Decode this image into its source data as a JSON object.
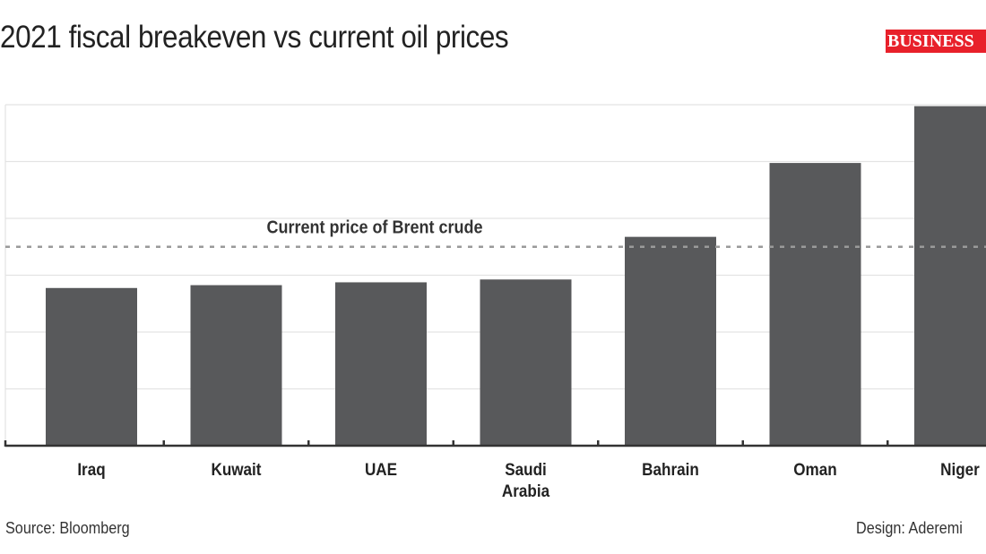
{
  "header": {
    "title": "2021 fiscal breakeven vs current oil prices",
    "logo_text": "BUSINESS"
  },
  "footer": {
    "source": "Source: Bloomberg",
    "design": "Design: Aderemi"
  },
  "colors": {
    "bar": "#58595b",
    "reference_line": "#9a9a9a",
    "gridline": "#e3e3e3",
    "axis": "#333333",
    "logo": "#e8202a"
  },
  "chart_data": {
    "type": "bar",
    "title": "2021 fiscal breakeven vs current oil prices",
    "categories": [
      "Iraq",
      "Kuwait",
      "UAE",
      "Saudi Arabia",
      "Bahrain",
      "Oman",
      "Niger"
    ],
    "category_lines": [
      [
        "Iraq"
      ],
      [
        "Kuwait"
      ],
      [
        "UAE"
      ],
      [
        "Saudi",
        "Arabia"
      ],
      [
        "Bahrain"
      ],
      [
        "Oman"
      ],
      [
        "Niger"
      ]
    ],
    "values": [
      55.5,
      56.5,
      57.5,
      58.5,
      73.5,
      99.5,
      119.5
    ],
    "ylim": [
      0,
      120
    ],
    "y_gridlines": [
      20,
      40,
      60,
      80,
      100,
      120
    ],
    "reference_line": {
      "value": 70,
      "label": "Current price of Brent crude"
    },
    "grid": true,
    "xlabel": "",
    "ylabel": ""
  }
}
